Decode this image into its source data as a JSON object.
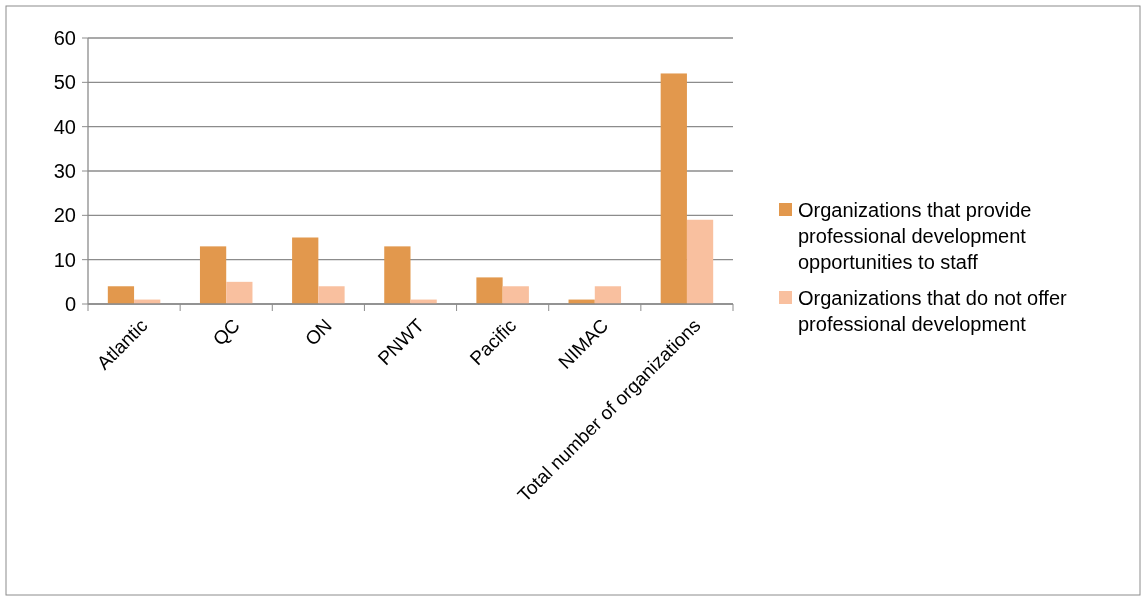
{
  "chart_data": {
    "type": "bar",
    "categories": [
      "Atlantic",
      "QC",
      "ON",
      "PNWT",
      "Pacific",
      "NIMAC",
      "Total number of organizations"
    ],
    "series": [
      {
        "name": "Organizations that provide professional development opportunities to staff",
        "color": "#e2984d",
        "values": [
          4,
          13,
          15,
          13,
          6,
          1,
          52
        ]
      },
      {
        "name": "Organizations that do not offer professional development",
        "color": "#f9c09f",
        "values": [
          1,
          5,
          4,
          1,
          4,
          4,
          19
        ]
      }
    ],
    "ylim": [
      0,
      60
    ],
    "yticks": [
      0,
      10,
      20,
      30,
      40,
      50,
      60
    ],
    "grid": "y",
    "legend": "right"
  }
}
